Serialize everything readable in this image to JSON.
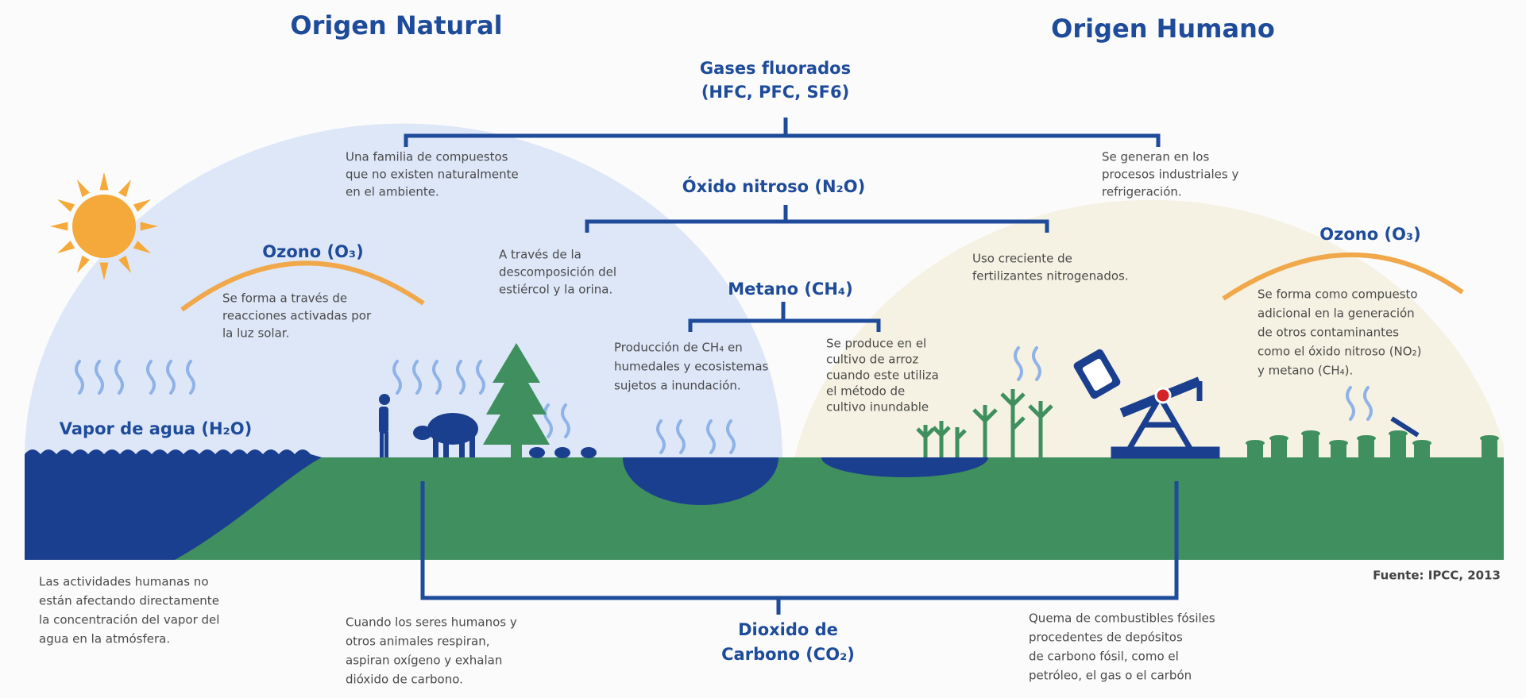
{
  "titles": {
    "natural": "Origen Natural",
    "human": "Origen Humano"
  },
  "fluorados": {
    "name": [
      "Gases fluorados",
      "(HFC, PFC, SF6)"
    ],
    "natural": [
      "Una familia de compuestos",
      "que no existen naturalmente",
      "en el ambiente."
    ],
    "human": [
      "Se generan en los",
      "procesos industriales y",
      "refrigeración."
    ]
  },
  "nitroso": {
    "name": [
      "Óxido nitroso (N₂O)"
    ],
    "natural": [
      "A través de la",
      "descomposición del",
      "estiércol y la orina."
    ],
    "human": [
      "Uso creciente de",
      "fertilizantes nitrogenados."
    ]
  },
  "metano": {
    "name": [
      "Metano (CH₄)"
    ],
    "natural": [
      "Producción de CH₄ en",
      "humedales y ecosistemas",
      "sujetos a inundación."
    ],
    "human": [
      "Se produce en el",
      "cultivo de arroz",
      "cuando este utiliza",
      "el método de",
      "cultivo inundable"
    ]
  },
  "ozono_natural": {
    "name": [
      "Ozono (O₃)"
    ],
    "desc": [
      "Se forma a través de",
      "reacciones activadas por",
      "la luz solar."
    ]
  },
  "ozono_human": {
    "name": [
      "Ozono (O₃)"
    ],
    "desc": [
      "Se forma como compuesto",
      "adicional en la generación",
      "de otros contaminantes",
      "como el óxido nitroso (NO₂)",
      "y metano (CH₄)."
    ]
  },
  "vapor": {
    "name": [
      "Vapor de agua (H₂O)"
    ],
    "desc": [
      "Las actividades humanas no",
      "están afectando directamente",
      "la concentración del vapor del",
      "agua en la atmósfera."
    ]
  },
  "co2": {
    "name": [
      "Dioxido de",
      "Carbono (CO₂)"
    ],
    "natural": [
      "Cuando los seres humanos y",
      "otros animales respiran,",
      "aspiran oxígeno y exhalan",
      "dióxido de carbono."
    ],
    "human": [
      "Quema de combustibles fósiles",
      "procedentes de depósitos",
      "de carbono fósil, como el",
      "petróleo, el gas o el carbón"
    ]
  },
  "source": "Fuente: IPCC, 2013"
}
